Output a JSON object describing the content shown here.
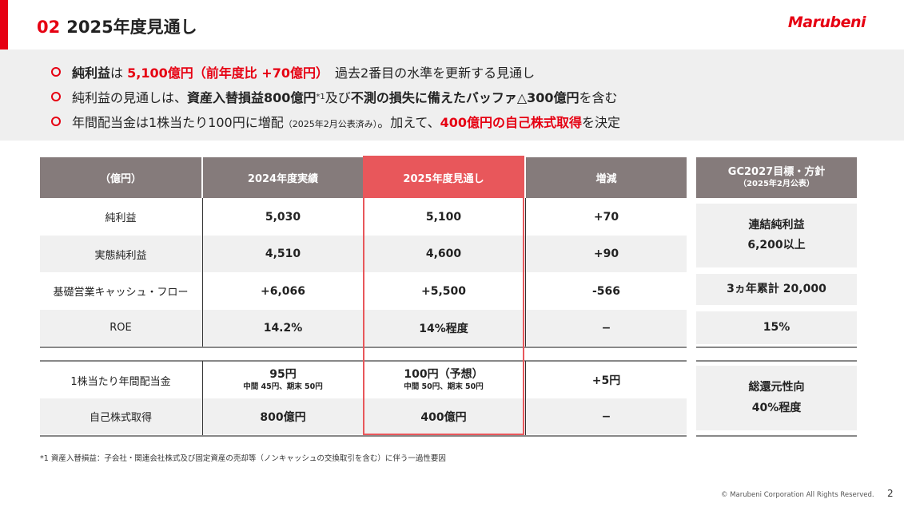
{
  "header": {
    "section_number": "02",
    "title": "2025年度見通し",
    "logo": "Marubeni"
  },
  "bullets": [
    {
      "p1": "純利益",
      "p2": "は ",
      "p3": "5,100億円（前年度比 +70億円）",
      "p4": "　過去2番目の水準を更新する見通し"
    },
    {
      "p1": "純利益の見通しは、",
      "p2": "資産入替損益800億円",
      "p3": "*1",
      "p4": "及び",
      "p5": "不測の損失に備えたバッファ△300億円",
      "p6": "を含む"
    },
    {
      "p1": "年間配当金は1株当たり100円に増配",
      "p2": "（2025年2月公表済み）",
      "p3": "。加えて、",
      "p4": "400億円の自己株式取得",
      "p5": "を決定"
    }
  ],
  "table": {
    "headers": [
      "（億円）",
      "2024年度実績",
      "2025年度見通し",
      "増減"
    ],
    "rows": [
      {
        "label": "純利益",
        "fy2024": "5,030",
        "fy2025": "5,100",
        "change": "+70"
      },
      {
        "label": "実態純利益",
        "fy2024": "4,510",
        "fy2025": "4,600",
        "change": "+90"
      },
      {
        "label": "基礎営業キャッシュ・フロー",
        "fy2024": "+6,066",
        "fy2025": "+5,500",
        "change": "-566"
      },
      {
        "label": "ROE",
        "fy2024": "14.2%",
        "fy2025": "14%程度",
        "change": "−"
      }
    ],
    "dividend_row": {
      "label": "1株当たり年間配当金",
      "fy2024": "95円",
      "fy2024_sub": "中間 45円、期末 50円",
      "fy2025": "100円（予想）",
      "fy2025_sub": "中間 50円、期末 50円",
      "change": "+5円"
    },
    "buyback_row": {
      "label": "自己株式取得",
      "fy2024": "800億円",
      "fy2025": "400億円",
      "change": "−"
    }
  },
  "gc2027": {
    "header": "GC2027目標・方針",
    "header_sub": "（2025年2月公表）",
    "net_profit_label": "連結純利益",
    "net_profit_value": "6,200以上",
    "cashflow": "3ヵ年累計 20,000",
    "roe": "15%",
    "payout_label": "総還元性向",
    "payout_value": "40%程度"
  },
  "footnote": "*1 資産入替損益：子会社・関連会社株式及び固定資産の売却等（ノンキャッシュの交換取引を含む）に伴う一過性要因",
  "copyright": "© Marubeni Corporation All Rights Reserved.",
  "page_number": "2",
  "colors": {
    "accent": "#e60012",
    "header_bg": "#857b7b",
    "highlight_header": "#e8575b"
  }
}
